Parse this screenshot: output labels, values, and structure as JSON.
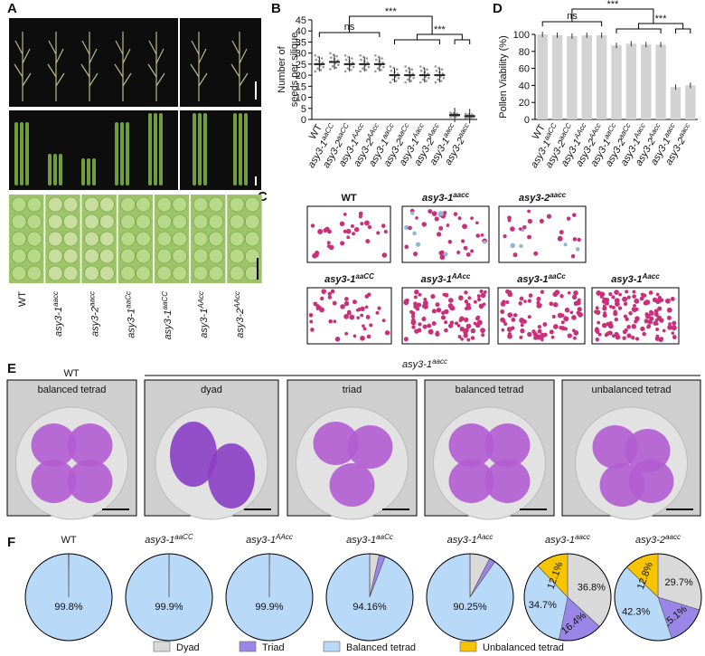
{
  "panel_labels": [
    "A",
    "B",
    "C",
    "D",
    "E",
    "F"
  ],
  "panel_a": {
    "labels": [
      {
        "base": "WT"
      },
      {
        "base": "asy3-1",
        "sup": "aacc"
      },
      {
        "base": "asy3-2",
        "sup": "aacc"
      },
      {
        "base": "asy3-1",
        "sup": "aaCc"
      },
      {
        "base": "asy3-1",
        "sup": "aaCC"
      },
      {
        "base": "asy3-1",
        "sup": "AAcc"
      },
      {
        "base": "asy3-2",
        "sup": "AAcc"
      }
    ]
  },
  "panel_c": {
    "labels": [
      {
        "base": "WT"
      },
      {
        "base": "asy3-1",
        "sup": "aacc"
      },
      {
        "base": "asy3-2",
        "sup": "aacc"
      },
      {
        "base": "asy3-1",
        "sup": "aaCC"
      },
      {
        "base": "asy3-1",
        "sup": "AAcc"
      },
      {
        "base": "asy3-1",
        "sup": "aaCc"
      },
      {
        "base": "asy3-1",
        "sup": "Aacc"
      }
    ]
  },
  "panel_e": {
    "group_labels": [
      {
        "base": "WT"
      },
      {
        "base": "asy3-1",
        "sup": "aacc"
      }
    ],
    "image_labels": [
      "balanced tetrad",
      "dyad",
      "triad",
      "balanced tetrad",
      "unbalanced tetrad"
    ]
  },
  "legend": {
    "labels": [
      "Dyad",
      "Triad",
      "Balanced tetrad",
      "Unbalanced tetrad"
    ],
    "colors": [
      "#d9d9d9",
      "#9a86e6",
      "#b9d9f9",
      "#f6c400"
    ]
  },
  "chart_data": [
    {
      "type": "strip",
      "ylabel": [
        "Number of",
        "seeds per silique"
      ],
      "categories": [
        "WT",
        "asy3-1",
        "asy3-2",
        "asy3-1",
        "asy3-2",
        "asy3-1",
        "asy3-2",
        "asy3-1",
        "asy3-2",
        "asy3-1",
        "asy3-2"
      ],
      "superscripts": [
        null,
        "aaCC",
        "aaCC",
        "AAcc",
        "AAcc",
        "aaCc",
        "aaCc",
        "Aacc",
        "Aacc",
        "aacc",
        "aacc"
      ],
      "values": [
        25,
        26,
        25,
        25,
        25,
        20,
        20,
        20,
        20,
        2,
        1.5
      ],
      "color": "#222222",
      "ylim": [
        0,
        45
      ],
      "yticks": [
        0,
        5,
        10,
        15,
        20,
        25,
        30,
        35,
        40,
        45
      ],
      "annotations": [
        "ns",
        "***",
        "***"
      ]
    },
    {
      "type": "bar",
      "ylabel": [
        "Pollen Viability (%)"
      ],
      "categories": [
        "WT",
        "asy3-1",
        "asy3-2",
        "asy3-1",
        "asy3-2",
        "asy3-1",
        "asy3-2",
        "asy3-1",
        "asy3-2",
        "asy3-1",
        "asy3-2"
      ],
      "superscripts": [
        null,
        "aaCC",
        "aaCC",
        "AAcc",
        "AAcc",
        "aaCc",
        "aaCc",
        "Aacc",
        "Aacc",
        "aacc",
        "aacc"
      ],
      "values": [
        100,
        99,
        98,
        99,
        99,
        87,
        89,
        88,
        88,
        38,
        40
      ],
      "color": "#d3d3d3",
      "ylim": [
        0,
        100
      ],
      "yticks": [
        0,
        20,
        40,
        60,
        80,
        100
      ],
      "annotations": [
        "ns",
        "***",
        "***"
      ]
    },
    {
      "type": "pie",
      "title": "WT",
      "values": [
        0.1,
        0,
        99.8,
        0.1
      ],
      "value_labels": [
        null,
        null,
        "99.8%",
        null
      ]
    },
    {
      "type": "pie",
      "title": "asy3-1",
      "title_sup": "aaCC",
      "values": [
        0.1,
        0,
        99.9,
        0
      ],
      "value_labels": [
        null,
        null,
        "99.9%",
        null
      ]
    },
    {
      "type": "pie",
      "title": "asy3-1",
      "title_sup": "AAcc",
      "values": [
        0.1,
        0,
        99.9,
        0
      ],
      "value_labels": [
        null,
        null,
        "99.9%",
        null
      ]
    },
    {
      "type": "pie",
      "title": "asy3-1",
      "title_sup": "aaCc",
      "values": [
        3.54,
        2.3,
        94.16,
        0
      ],
      "value_labels": [
        null,
        null,
        "94.16%",
        null
      ]
    },
    {
      "type": "pie",
      "title": "asy3-1",
      "title_sup": "Aacc",
      "values": [
        7.5,
        2.25,
        90.25,
        0
      ],
      "value_labels": [
        null,
        null,
        "90.25%",
        null
      ]
    },
    {
      "type": "pie",
      "title": "asy3-1",
      "title_sup": "aacc",
      "values": [
        36.8,
        16.4,
        34.7,
        12.1
      ],
      "value_labels": [
        "36.8%",
        "16.4%",
        "34.7%",
        "12.1%"
      ]
    },
    {
      "type": "pie",
      "title": "asy3-2",
      "title_sup": "aacc",
      "values": [
        29.7,
        15.1,
        42.3,
        12.8
      ],
      "value_labels": [
        "29.7%",
        "15.1%",
        "42.3%",
        "12.8%"
      ]
    }
  ]
}
